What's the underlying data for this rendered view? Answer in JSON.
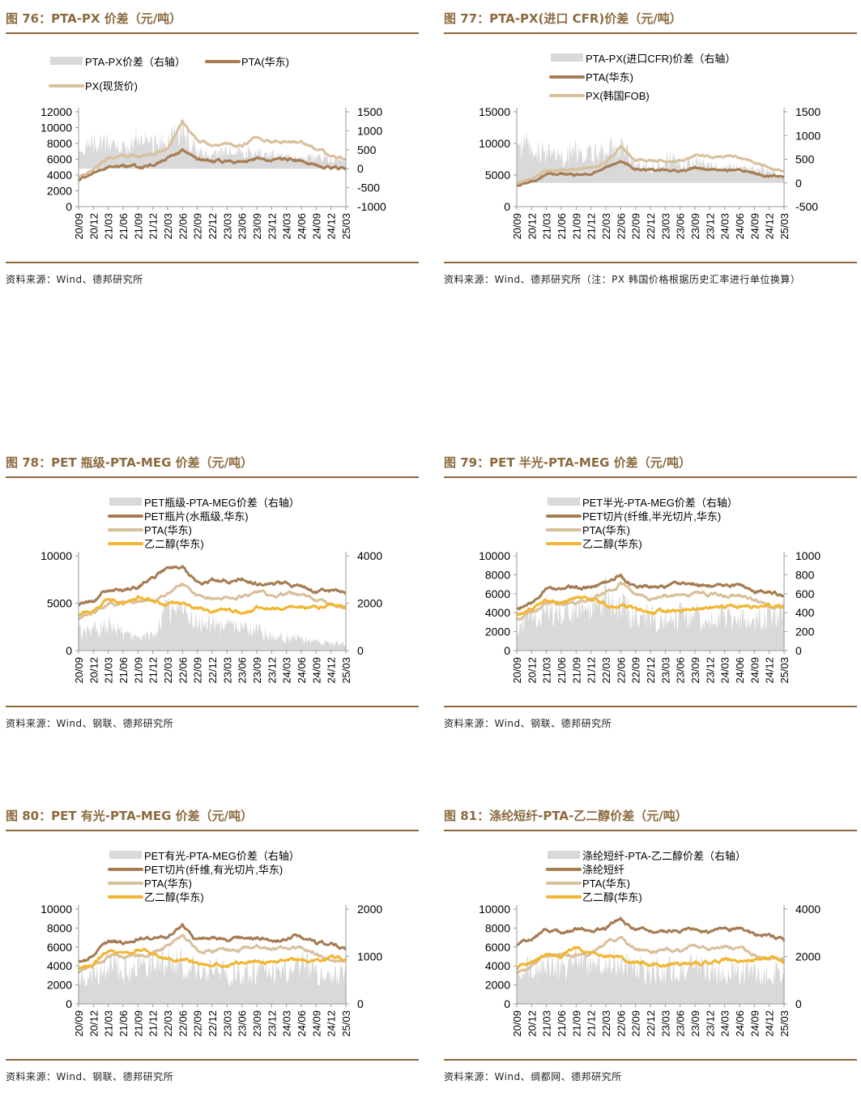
{
  "colors": {
    "brand": "#8B6A3E",
    "spread": "#d9d9d9",
    "pet": "#a67c52",
    "pta": "#d8c09b",
    "meg": "#f2b632",
    "px": "#d8c09b"
  },
  "months": [
    "20/09",
    "20/12",
    "21/03",
    "21/06",
    "21/09",
    "21/12",
    "22/03",
    "22/06",
    "22/09",
    "22/12",
    "23/03",
    "23/06",
    "23/09",
    "23/12",
    "24/03",
    "24/06",
    "24/09",
    "24/12",
    "25/03"
  ],
  "figures": [
    {
      "title": "图 76：PTA-PX 价差（元/吨）",
      "source": "资料来源：Wind、德邦研究所"
    },
    {
      "title": "图 77：PTA-PX(进口 CFR)价差（元/吨）",
      "source": "资料来源：Wind、德邦研究所（注：PX 韩国价格根据历史汇率进行单位换算）"
    },
    {
      "title": "图 78：PET 瓶级-PTA-MEG 价差（元/吨）",
      "source": "资料来源：Wind、钢联、德邦研究所"
    },
    {
      "title": "图 79：PET 半光-PTA-MEG 价差（元/吨）",
      "source": "资料来源：Wind、钢联、德邦研究所"
    },
    {
      "title": "图 80：PET 有光-PTA-MEG 价差（元/吨）",
      "source": "资料来源：Wind、钢联、德邦研究所"
    },
    {
      "title": "图 81：涤纶短纤-PTA-乙二醇价差（元/吨）",
      "source": "资料来源：Wind、绸都网、德邦研究所"
    }
  ],
  "chart_data": [
    {
      "type": "line",
      "x": "months",
      "grid": false,
      "legend": [
        "PTA-PX价差（右轴）",
        "PTA(华东)",
        "PX(现货价)"
      ],
      "ylim": [
        0,
        12000
      ],
      "yticks": [
        0,
        2000,
        4000,
        6000,
        8000,
        10000,
        12000
      ],
      "y2lim": [
        -1000,
        1500
      ],
      "y2ticks": [
        -1000,
        -500,
        0,
        500,
        1000,
        1500
      ],
      "series": [
        {
          "name": "PTA-PX价差（右轴）",
          "kind": "area",
          "axis": "right",
          "color": "spread",
          "values": [
            500,
            700,
            650,
            550,
            800,
            650,
            700,
            1000,
            450,
            350,
            500,
            450,
            400,
            350,
            300,
            300,
            300,
            250,
            150
          ]
        },
        {
          "name": "PTA(华东)",
          "kind": "line",
          "axis": "left",
          "color": "pet",
          "values": [
            3300,
            4000,
            5000,
            5000,
            5100,
            5300,
            6200,
            7000,
            5900,
            5600,
            5800,
            5700,
            6100,
            5900,
            5900,
            5900,
            5300,
            4800,
            4800
          ]
        },
        {
          "name": "PX(现货价)",
          "kind": "line",
          "axis": "left",
          "color": "px",
          "values": [
            3700,
            4500,
            6000,
            6300,
            6400,
            6600,
            7300,
            10700,
            8300,
            7800,
            7800,
            7500,
            8800,
            8200,
            8200,
            8100,
            7300,
            6400,
            6000
          ]
        }
      ]
    },
    {
      "type": "line",
      "x": "months",
      "grid": false,
      "legend": [
        "PTA-PX(进口CFR)价差（右轴）",
        "PTA(华东)",
        "PX(韩国FOB)"
      ],
      "ylim": [
        0,
        15000
      ],
      "yticks": [
        0,
        5000,
        10000,
        15000
      ],
      "y2lim": [
        -500,
        1500
      ],
      "y2ticks": [
        -500,
        0,
        500,
        1000,
        1500
      ],
      "series": [
        {
          "name": "PTA-PX(进口CFR)价差（右轴）",
          "kind": "area",
          "axis": "right",
          "color": "spread",
          "values": [
            700,
            800,
            600,
            500,
            700,
            600,
            650,
            850,
            400,
            300,
            500,
            400,
            400,
            350,
            300,
            300,
            300,
            250,
            100
          ]
        },
        {
          "name": "PTA(华东)",
          "kind": "line",
          "axis": "left",
          "color": "pet",
          "values": [
            3300,
            4000,
            5000,
            5000,
            5100,
            5300,
            6200,
            7000,
            5900,
            5600,
            5800,
            5700,
            6100,
            5900,
            5900,
            5900,
            5300,
            4800,
            4800
          ]
        },
        {
          "name": "PX(韩国FOB)",
          "kind": "line",
          "axis": "left",
          "color": "px",
          "values": [
            3700,
            4400,
            5600,
            5900,
            6100,
            6300,
            7200,
            9700,
            7500,
            7300,
            7300,
            7200,
            8300,
            7800,
            7900,
            7800,
            7100,
            6200,
            5700
          ]
        }
      ]
    },
    {
      "type": "line",
      "x": "months",
      "grid": false,
      "legend": [
        "PET瓶级-PTA-MEG价差（右轴）",
        "PET瓶片(水瓶级,华东)",
        "PTA(华东)",
        "乙二醇(华东)"
      ],
      "ylim": [
        0,
        10000
      ],
      "yticks": [
        0,
        5000,
        10000
      ],
      "y2lim": [
        0,
        4000
      ],
      "y2ticks": [
        0,
        2000,
        4000
      ],
      "series": [
        {
          "name": "PET瓶级-PTA-MEG价差（右轴）",
          "kind": "area",
          "axis": "right",
          "color": "spread",
          "values": [
            800,
            900,
            1100,
            700,
            500,
            600,
            1800,
            1600,
            1100,
            1100,
            1000,
            900,
            800,
            600,
            500,
            500,
            400,
            300,
            300
          ]
        },
        {
          "name": "PET瓶片(水瓶级,华东)",
          "kind": "line",
          "axis": "left",
          "color": "pet",
          "values": [
            4800,
            5300,
            6500,
            6400,
            6700,
            8000,
            8600,
            9000,
            7300,
            7400,
            7300,
            7600,
            7100,
            7100,
            7000,
            7100,
            6400,
            6300,
            6000
          ]
        },
        {
          "name": "PTA(华东)",
          "kind": "line",
          "axis": "left",
          "color": "pta",
          "values": [
            3300,
            4000,
            5000,
            5000,
            5100,
            5300,
            6200,
            7000,
            5900,
            5600,
            5800,
            5700,
            6100,
            5900,
            5900,
            5900,
            5300,
            4800,
            4800
          ]
        },
        {
          "name": "乙二醇(华东)",
          "kind": "line",
          "axis": "left",
          "color": "meg",
          "values": [
            3700,
            4300,
            5400,
            5000,
            5700,
            5400,
            4900,
            4800,
            4300,
            4100,
            4200,
            4200,
            4400,
            4400,
            4600,
            4600,
            4600,
            4800,
            4600
          ]
        }
      ]
    },
    {
      "type": "line",
      "x": "months",
      "grid": false,
      "legend": [
        "PET半光-PTA-MEG价差（右轴）",
        "PET切片(纤维,半光切片,华东)",
        "PTA(华东)",
        "乙二醇(华东)"
      ],
      "ylim": [
        0,
        10000
      ],
      "yticks": [
        0,
        2000,
        4000,
        6000,
        8000,
        10000
      ],
      "y2lim": [
        0,
        1000
      ],
      "y2ticks": [
        0,
        200,
        400,
        600,
        800,
        1000
      ],
      "series": [
        {
          "name": "PET半光-PTA-MEG价差（右轴）",
          "kind": "area",
          "axis": "right",
          "color": "spread",
          "values": [
            250,
            350,
            450,
            380,
            420,
            450,
            550,
            450,
            350,
            380,
            300,
            350,
            350,
            380,
            350,
            350,
            300,
            350,
            400
          ]
        },
        {
          "name": "PET切片(纤维,半光切片,华东)",
          "kind": "line",
          "axis": "left",
          "color": "pet",
          "values": [
            4400,
            5000,
            6500,
            6300,
            6800,
            6600,
            7100,
            8100,
            6700,
            6800,
            6800,
            7000,
            6900,
            6800,
            7000,
            7000,
            6400,
            6300,
            5700
          ]
        },
        {
          "name": "PTA(华东)",
          "kind": "line",
          "axis": "left",
          "color": "pta",
          "values": [
            3300,
            4000,
            5000,
            5000,
            5100,
            5300,
            6200,
            7000,
            5900,
            5600,
            5800,
            5700,
            6100,
            5900,
            5900,
            5900,
            5300,
            4800,
            4800
          ]
        },
        {
          "name": "乙二醇(华东)",
          "kind": "line",
          "axis": "left",
          "color": "meg",
          "values": [
            3700,
            4300,
            5400,
            5000,
            5700,
            5400,
            4900,
            4800,
            4300,
            4100,
            4200,
            4200,
            4400,
            4400,
            4600,
            4600,
            4600,
            4800,
            4600
          ]
        }
      ]
    },
    {
      "type": "line",
      "x": "months",
      "grid": false,
      "legend": [
        "PET有光-PTA-MEG价差（右轴）",
        "PET切片(纤维,有光切片,华东)",
        "PTA(华东)",
        "乙二醇(华东)"
      ],
      "ylim": [
        0,
        10000
      ],
      "yticks": [
        0,
        2000,
        4000,
        6000,
        8000,
        10000
      ],
      "y2lim": [
        0,
        2000
      ],
      "y2ticks": [
        0,
        1000,
        2000
      ],
      "series": [
        {
          "name": "PET有光-PTA-MEG价差（右轴）",
          "kind": "area",
          "axis": "right",
          "color": "spread",
          "values": [
            450,
            600,
            800,
            700,
            800,
            850,
            1000,
            900,
            700,
            700,
            650,
            650,
            700,
            700,
            650,
            800,
            700,
            650,
            600
          ]
        },
        {
          "name": "PET切片(纤维,有光切片,华东)",
          "kind": "line",
          "axis": "left",
          "color": "pet",
          "values": [
            4500,
            5100,
            6600,
            6400,
            6900,
            6700,
            7200,
            8300,
            6800,
            6900,
            6800,
            7100,
            7000,
            6900,
            7000,
            7100,
            6400,
            6300,
            5700
          ]
        },
        {
          "name": "PTA(华东)",
          "kind": "line",
          "axis": "left",
          "color": "pta",
          "values": [
            3300,
            4000,
            5000,
            5000,
            5100,
            5300,
            6200,
            7000,
            5900,
            5600,
            5800,
            5700,
            6100,
            5900,
            5900,
            5900,
            5300,
            4800,
            4800
          ]
        },
        {
          "name": "乙二醇(华东)",
          "kind": "line",
          "axis": "left",
          "color": "meg",
          "values": [
            3700,
            4300,
            5400,
            5000,
            5700,
            5400,
            4900,
            4800,
            4300,
            4100,
            4200,
            4200,
            4400,
            4400,
            4600,
            4600,
            4600,
            4800,
            4600
          ]
        }
      ]
    },
    {
      "type": "line",
      "x": "months",
      "grid": false,
      "legend": [
        "涤纶短纤-PTA-乙二醇价差（右轴）",
        "涤纶短纤",
        "PTA(华东)",
        "乙二醇(华东)"
      ],
      "ylim": [
        0,
        10000
      ],
      "yticks": [
        0,
        2000,
        4000,
        6000,
        8000,
        10000
      ],
      "y2lim": [
        0,
        4000
      ],
      "y2ticks": [
        0,
        2000,
        4000
      ],
      "series": [
        {
          "name": "涤纶短纤-PTA-乙二醇价差（右轴）",
          "kind": "area",
          "axis": "right",
          "color": "spread",
          "values": [
            1300,
            1500,
            1700,
            1500,
            1700,
            1600,
            1800,
            1700,
            1500,
            1500,
            1400,
            1400,
            1500,
            1400,
            1300,
            1400,
            1300,
            1300,
            1200
          ]
        },
        {
          "name": "涤纶短纤",
          "kind": "line",
          "axis": "left",
          "color": "pet",
          "values": [
            6200,
            6800,
            7800,
            7300,
            7800,
            7500,
            8000,
            9000,
            7800,
            7700,
            7700,
            7700,
            7900,
            7700,
            7700,
            7900,
            7200,
            7200,
            6600
          ]
        },
        {
          "name": "PTA(华东)",
          "kind": "line",
          "axis": "left",
          "color": "pta",
          "values": [
            3300,
            4000,
            5000,
            5000,
            5100,
            5300,
            6200,
            7000,
            5900,
            5600,
            5800,
            5700,
            6100,
            5900,
            5900,
            5900,
            5300,
            4800,
            4800
          ]
        },
        {
          "name": "乙二醇(华东)",
          "kind": "line",
          "axis": "left",
          "color": "meg",
          "values": [
            3700,
            4300,
            5400,
            5000,
            5700,
            5400,
            4900,
            4800,
            4300,
            4100,
            4200,
            4200,
            4400,
            4400,
            4600,
            4600,
            4600,
            4800,
            4600
          ]
        }
      ]
    }
  ]
}
